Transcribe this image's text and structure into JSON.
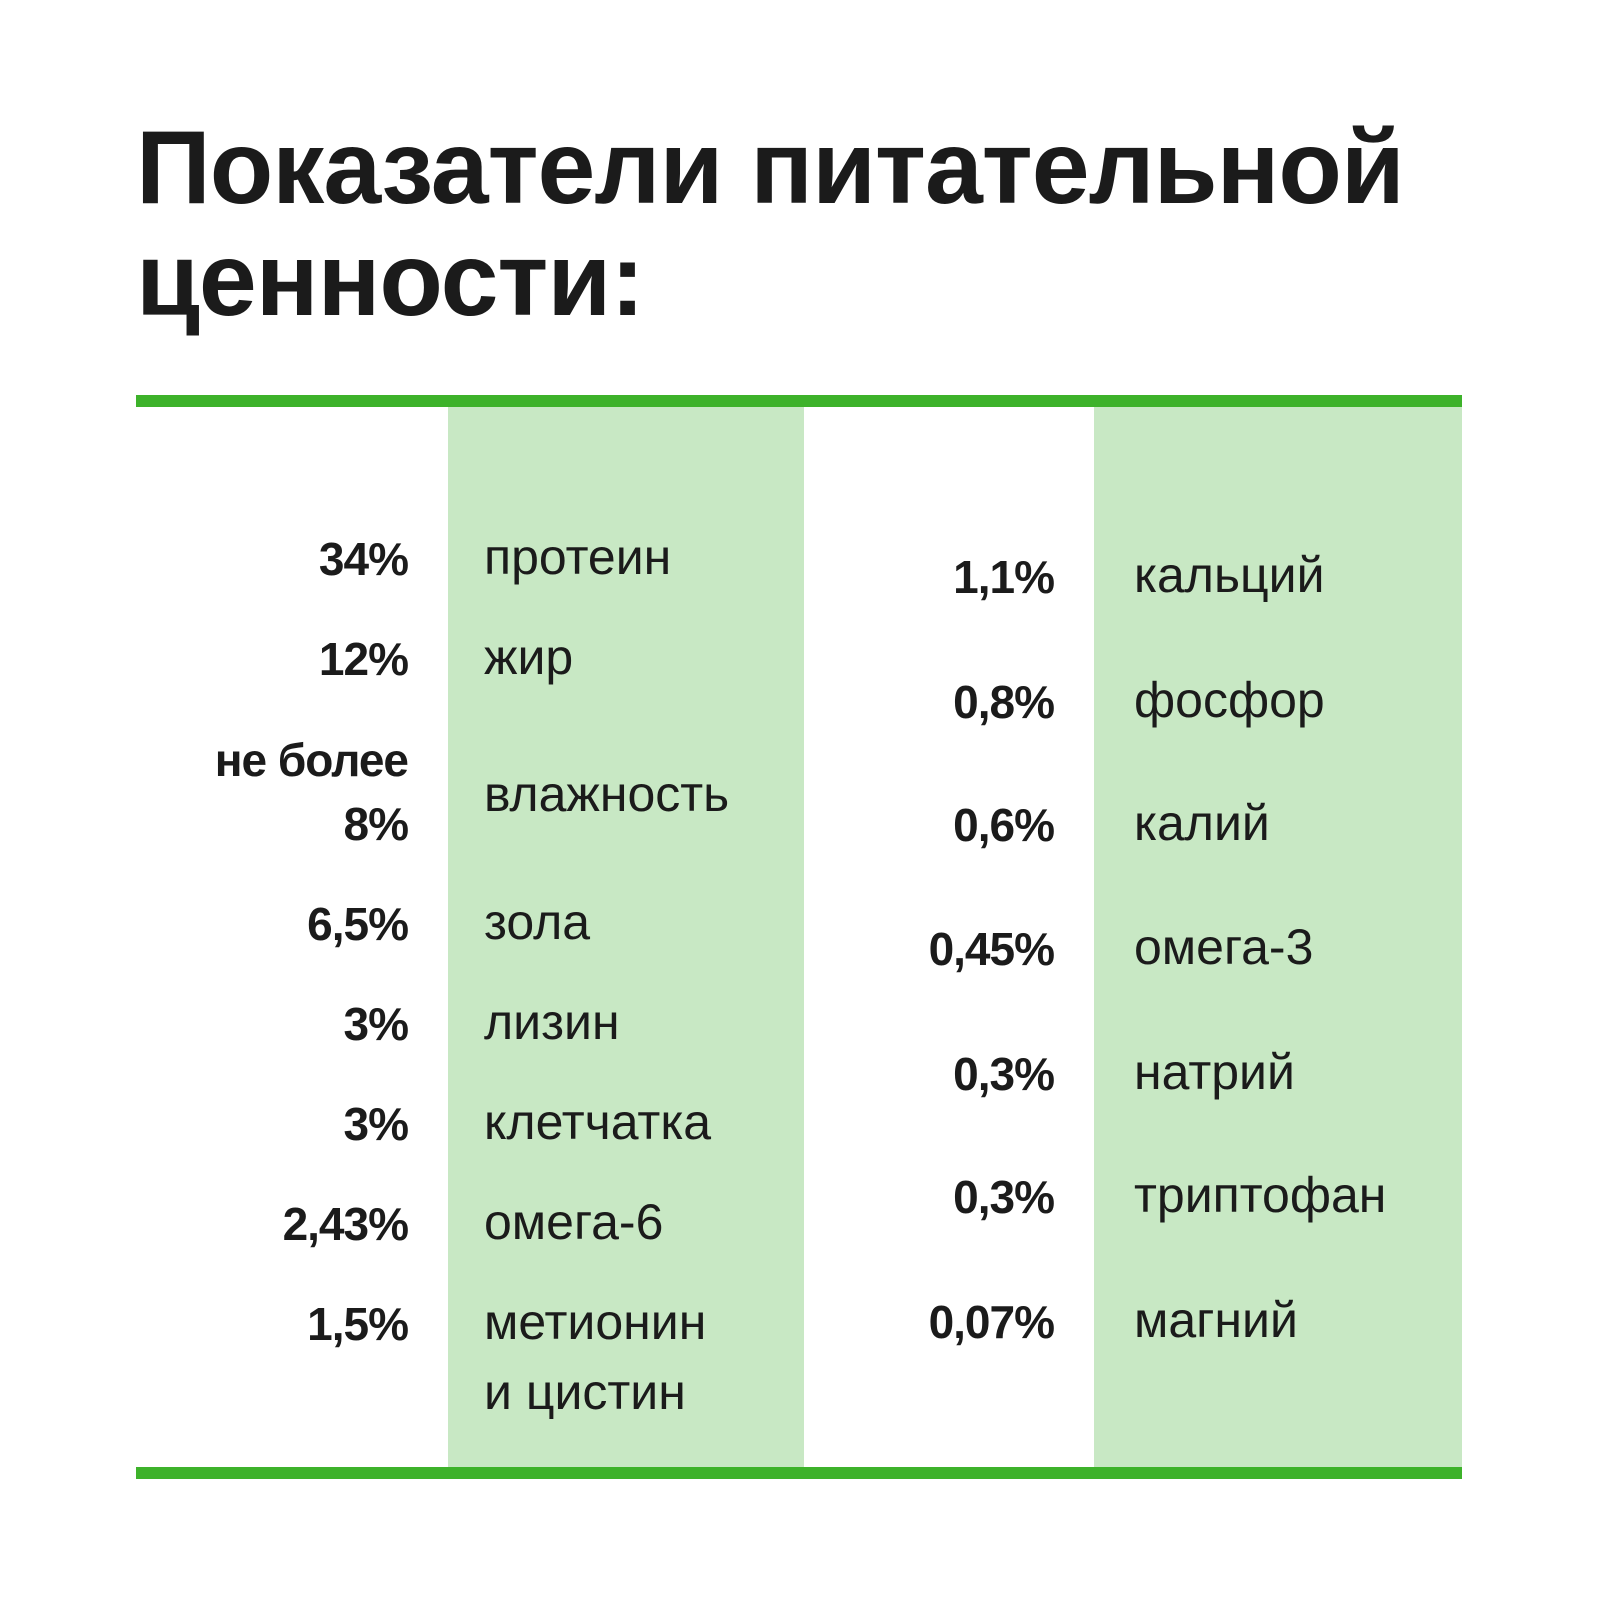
{
  "title": {
    "line1": "Показатели питательной",
    "line2": "ценности:"
  },
  "colors": {
    "accent": "#3db22a",
    "band": "#c8e8c4",
    "text": "#1b1b1b"
  },
  "left_column": [
    {
      "value": "34%",
      "label": "протеин"
    },
    {
      "value": "12%",
      "label": "жир"
    },
    {
      "value_line1": "не более",
      "value_line2": "8%",
      "label": "влажность"
    },
    {
      "value": "6,5%",
      "label": "зола"
    },
    {
      "value": "3%",
      "label": "лизин"
    },
    {
      "value": "3%",
      "label": "клетчатка"
    },
    {
      "value": "2,43%",
      "label": "омега-6"
    },
    {
      "value": "1,5%",
      "label_line1": "метионин",
      "label_line2": "и цистин"
    }
  ],
  "right_column": [
    {
      "value": "1,1%",
      "label": "кальций"
    },
    {
      "value": "0,8%",
      "label": "фосфор"
    },
    {
      "value": "0,6%",
      "label": "калий"
    },
    {
      "value": "0,45%",
      "label": "омега-3"
    },
    {
      "value": "0,3%",
      "label": "натрий"
    },
    {
      "value": "0,3%",
      "label": "триптофан"
    },
    {
      "value": "0,07%",
      "label": "магний"
    }
  ]
}
